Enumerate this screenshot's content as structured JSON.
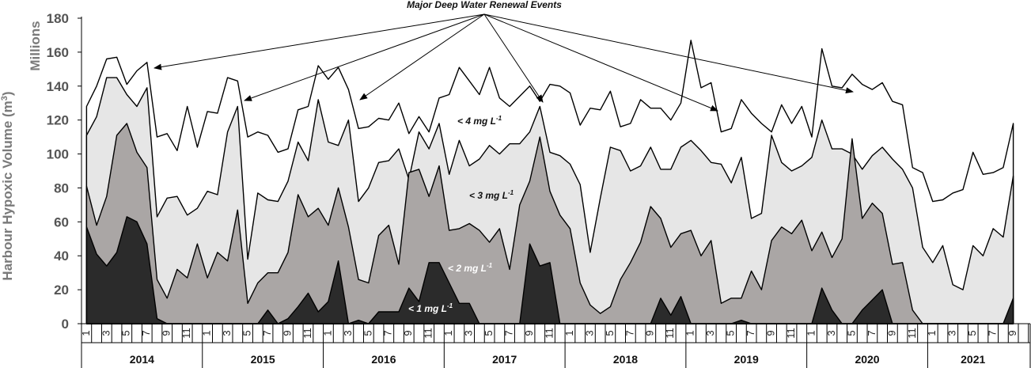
{
  "chart_data": {
    "type": "area",
    "title": "Major Deep Water Renewal Events",
    "ylabel": "Harbour Hypoxic Volume (m³)",
    "yunit": "Millions",
    "ylim": [
      0,
      180
    ],
    "yticks": [
      0,
      20,
      40,
      60,
      80,
      100,
      120,
      140,
      160,
      180
    ],
    "grid": false,
    "x_month_labels": [
      "1",
      "3",
      "5",
      "7",
      "9",
      "11"
    ],
    "years": [
      {
        "label": "2014",
        "start_index": 0,
        "months": 12
      },
      {
        "label": "2015",
        "start_index": 12,
        "months": 12
      },
      {
        "label": "2016",
        "start_index": 24,
        "months": 12
      },
      {
        "label": "2017",
        "start_index": 36,
        "months": 12
      },
      {
        "label": "2018",
        "start_index": 48,
        "months": 12
      },
      {
        "label": "2019",
        "start_index": 60,
        "months": 12
      },
      {
        "label": "2020",
        "start_index": 72,
        "months": 12
      },
      {
        "label": "2021",
        "start_index": 84,
        "months": 9
      }
    ],
    "series": [
      {
        "name": "< 4 mg L-1",
        "color": "#ffffff",
        "label_color": "#111111",
        "values": [
          128,
          140,
          156,
          157,
          141,
          149,
          154,
          110,
          112,
          102,
          128,
          104,
          125,
          124,
          145,
          143,
          110,
          113,
          111,
          101,
          103,
          126,
          128,
          152,
          144,
          151,
          138,
          115,
          116,
          121,
          120,
          130,
          112,
          122,
          113,
          133,
          135,
          151,
          143,
          135,
          151,
          133,
          128,
          134,
          140,
          131,
          141,
          140,
          136,
          117,
          127,
          126,
          137,
          116,
          118,
          132,
          127,
          127,
          120,
          130,
          167,
          139,
          142,
          113,
          115,
          132,
          124,
          118,
          113,
          129,
          118,
          128,
          110,
          162,
          140,
          139,
          147,
          141,
          138,
          142,
          131,
          129,
          92,
          89,
          72,
          73,
          77,
          79,
          101,
          88,
          89,
          92,
          118
        ]
      },
      {
        "name": "< 3 mg L-1",
        "color": "#e6e6e6",
        "label_color": "#111111",
        "values": [
          111,
          122,
          145,
          145,
          135,
          128,
          139,
          63,
          74,
          75,
          64,
          68,
          78,
          76,
          113,
          128,
          38,
          77,
          73,
          72,
          84,
          107,
          96,
          132,
          107,
          105,
          120,
          72,
          80,
          95,
          96,
          103,
          85,
          113,
          103,
          118,
          88,
          108,
          93,
          97,
          105,
          100,
          106,
          106,
          113,
          128,
          101,
          99,
          94,
          82,
          42,
          74,
          104,
          102,
          90,
          93,
          104,
          91,
          91,
          104,
          108,
          102,
          95,
          94,
          83,
          98,
          62,
          65,
          111,
          95,
          90,
          93,
          98,
          120,
          103,
          103,
          100,
          91,
          99,
          104,
          97,
          91,
          80,
          45,
          36,
          46,
          23,
          20,
          46,
          40,
          56,
          51,
          87
        ]
      },
      {
        "name": "< 2 mg L-1",
        "color": "#aaa6a5",
        "label_color": "#ffffff",
        "values": [
          81,
          58,
          75,
          111,
          118,
          101,
          92,
          26,
          15,
          32,
          27,
          47,
          27,
          42,
          37,
          67,
          12,
          24,
          30,
          30,
          42,
          76,
          63,
          68,
          58,
          80,
          57,
          26,
          24,
          52,
          58,
          35,
          89,
          91,
          75,
          93,
          55,
          56,
          59,
          55,
          48,
          56,
          32,
          70,
          84,
          110,
          78,
          64,
          56,
          24,
          11,
          6,
          10,
          26,
          36,
          48,
          69,
          62,
          45,
          53,
          55,
          40,
          49,
          12,
          15,
          15,
          31,
          20,
          49,
          57,
          53,
          61,
          43,
          54,
          39,
          50,
          109,
          62,
          71,
          65,
          35,
          36,
          8,
          0,
          0,
          0,
          0,
          0,
          0,
          0,
          0,
          0,
          0
        ]
      },
      {
        "name": "< 1 mg L-1",
        "color": "#2b2b2b",
        "label_color": "#ffffff",
        "values": [
          57,
          41,
          34,
          42,
          63,
          60,
          47,
          3,
          0,
          0,
          0,
          0,
          0,
          0,
          0,
          0,
          0,
          0,
          8,
          0,
          3,
          10,
          18,
          7,
          13,
          37,
          0,
          2,
          0,
          7,
          7,
          7,
          21,
          13,
          36,
          36,
          24,
          12,
          12,
          0,
          0,
          0,
          0,
          0,
          47,
          34,
          36,
          0,
          0,
          0,
          0,
          0,
          0,
          0,
          0,
          0,
          0,
          15,
          5,
          16,
          0,
          0,
          0,
          0,
          0,
          2,
          0,
          0,
          0,
          0,
          0,
          0,
          0,
          21,
          8,
          0,
          0,
          8,
          14,
          20,
          0,
          0,
          0,
          0,
          0,
          0,
          0,
          0,
          0,
          0,
          0,
          0,
          15
        ]
      }
    ]
  },
  "labels": {
    "renewal": "Major Deep Water Renewal Events",
    "lt4": "< 4 mg L",
    "lt3": "< 3 mg L",
    "lt2": "< 2 mg L",
    "lt1": "< 1 mg L",
    "sup": "-1",
    "millions": "Millions",
    "ylabel": "Harbour Hypoxic Volume (m",
    "ylabel_sup": "3",
    "ylabel_end": ")"
  }
}
